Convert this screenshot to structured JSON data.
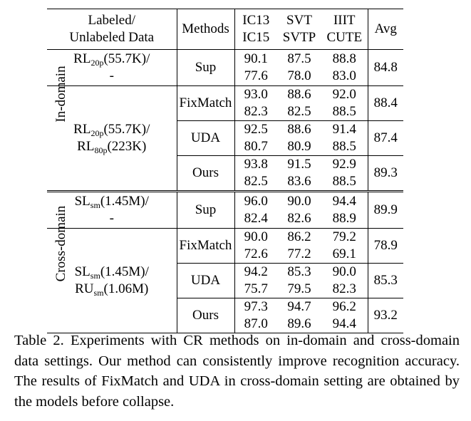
{
  "table": {
    "headers": {
      "data_line1": "Labeled/",
      "data_line2": "Unlabeled Data",
      "methods": "Methods",
      "ic_line1": "IC13",
      "ic_line2": "IC15",
      "svt_line1": "SVT",
      "svt_line2": "SVTP",
      "iiit_line1": "IIIT",
      "iiit_line2": "CUTE",
      "avg": "Avg"
    },
    "groups": {
      "in_domain": "In-domain",
      "cross_domain": "Cross-domain"
    },
    "data_settings": {
      "in_sup_prefix": "RL",
      "in_sup_sub": "20p",
      "in_sup_suffix": "(55.7K)/",
      "in_sup_line2": "-",
      "in_cr_l1_prefix": "RL",
      "in_cr_l1_sub": "20p",
      "in_cr_l1_suffix": "(55.7K)/",
      "in_cr_l2_prefix": "RL",
      "in_cr_l2_sub": "80p",
      "in_cr_l2_suffix": "(223K)",
      "cross_sup_prefix": "SL",
      "cross_sup_sub": "sm",
      "cross_sup_suffix": "(1.45M)/",
      "cross_sup_line2": "-",
      "cross_cr_l1_prefix": "SL",
      "cross_cr_l1_sub": "sm",
      "cross_cr_l1_suffix": "(1.45M)/",
      "cross_cr_l2_prefix": "RU",
      "cross_cr_l2_sub": "sm",
      "cross_cr_l2_suffix": "(1.06M)"
    },
    "rows": [
      {
        "method": "Sup",
        "ic13": "90.1",
        "ic15": "77.6",
        "svt": "87.5",
        "svtp": "78.0",
        "iiit": "88.8",
        "cute": "83.0",
        "avg": "84.8"
      },
      {
        "method": "FixMatch",
        "ic13": "93.0",
        "ic15": "82.3",
        "svt": "88.6",
        "svtp": "82.5",
        "iiit": "92.0",
        "cute": "88.5",
        "avg": "88.4"
      },
      {
        "method": "UDA",
        "ic13": "92.5",
        "ic15": "80.7",
        "svt": "88.6",
        "svtp": "80.9",
        "iiit": "91.4",
        "cute": "88.5",
        "avg": "87.4"
      },
      {
        "method": "Ours",
        "ic13": "93.8",
        "ic15": "82.5",
        "svt": "91.5",
        "svtp": "83.6",
        "iiit": "92.9",
        "cute": "88.5",
        "avg": "89.3"
      },
      {
        "method": "Sup",
        "ic13": "96.0",
        "ic15": "82.4",
        "svt": "90.0",
        "svtp": "82.6",
        "iiit": "94.4",
        "cute": "88.9",
        "avg": "89.9"
      },
      {
        "method": "FixMatch",
        "ic13": "90.0",
        "ic15": "72.6",
        "svt": "86.2",
        "svtp": "77.2",
        "iiit": "79.2",
        "cute": "69.1",
        "avg": "78.9"
      },
      {
        "method": "UDA",
        "ic13": "94.2",
        "ic15": "75.7",
        "svt": "85.3",
        "svtp": "79.5",
        "iiit": "90.0",
        "cute": "82.3",
        "avg": "85.3"
      },
      {
        "method": "Ours",
        "ic13": "97.3",
        "ic15": "87.0",
        "svt": "94.7",
        "svtp": "89.6",
        "iiit": "96.2",
        "cute": "94.4",
        "avg": "93.2"
      }
    ]
  },
  "caption": "Table 2. Experiments with CR methods on in-domain and cross-domain data settings. Our method can consistently improve recognition accuracy.  The results of FixMatch and UDA in cross-domain setting are obtained by the models before collapse."
}
